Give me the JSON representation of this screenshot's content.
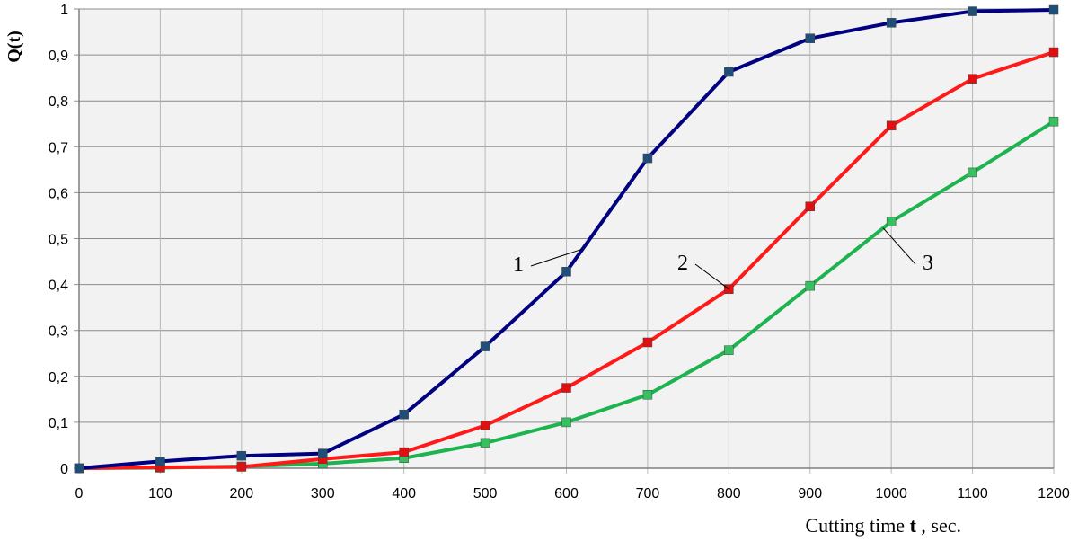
{
  "chart_data": {
    "type": "line",
    "ylabel": "Q(t)",
    "xlabel_prefix": "Cutting time ",
    "xlabel_var": "t",
    "xlabel_suffix": " , sec.",
    "x": [
      0,
      100,
      200,
      300,
      400,
      500,
      600,
      700,
      800,
      900,
      1000,
      1100,
      1200
    ],
    "xlim": [
      0,
      1200
    ],
    "ylim": [
      0,
      1
    ],
    "xticks": [
      "0",
      "100",
      "200",
      "300",
      "400",
      "500",
      "600",
      "700",
      "800",
      "900",
      "1000",
      "1100",
      "1200"
    ],
    "yticks": [
      "0",
      "0,1",
      "0,2",
      "0,3",
      "0,4",
      "0,5",
      "0,6",
      "0,7",
      "0,8",
      "0,9",
      "1"
    ],
    "grid": true,
    "series": [
      {
        "label": "1",
        "color": "#000080",
        "marker_color": "#1f4e79",
        "values": [
          0,
          0.015,
          0.027,
          0.032,
          0.117,
          0.265,
          0.428,
          0.675,
          0.863,
          0.936,
          0.97,
          0.995,
          0.998
        ]
      },
      {
        "label": "2",
        "color": "#ff1a1a",
        "marker_color": "#e01010",
        "values": [
          0,
          0.002,
          0.003,
          0.02,
          0.035,
          0.093,
          0.175,
          0.274,
          0.39,
          0.57,
          0.746,
          0.848,
          0.906
        ]
      },
      {
        "label": "3",
        "color": "#1db44f",
        "marker_color": "#36c060",
        "values": [
          0,
          0.001,
          0.004,
          0.01,
          0.022,
          0.055,
          0.1,
          0.16,
          0.257,
          0.397,
          0.537,
          0.644,
          0.755
        ]
      }
    ]
  }
}
